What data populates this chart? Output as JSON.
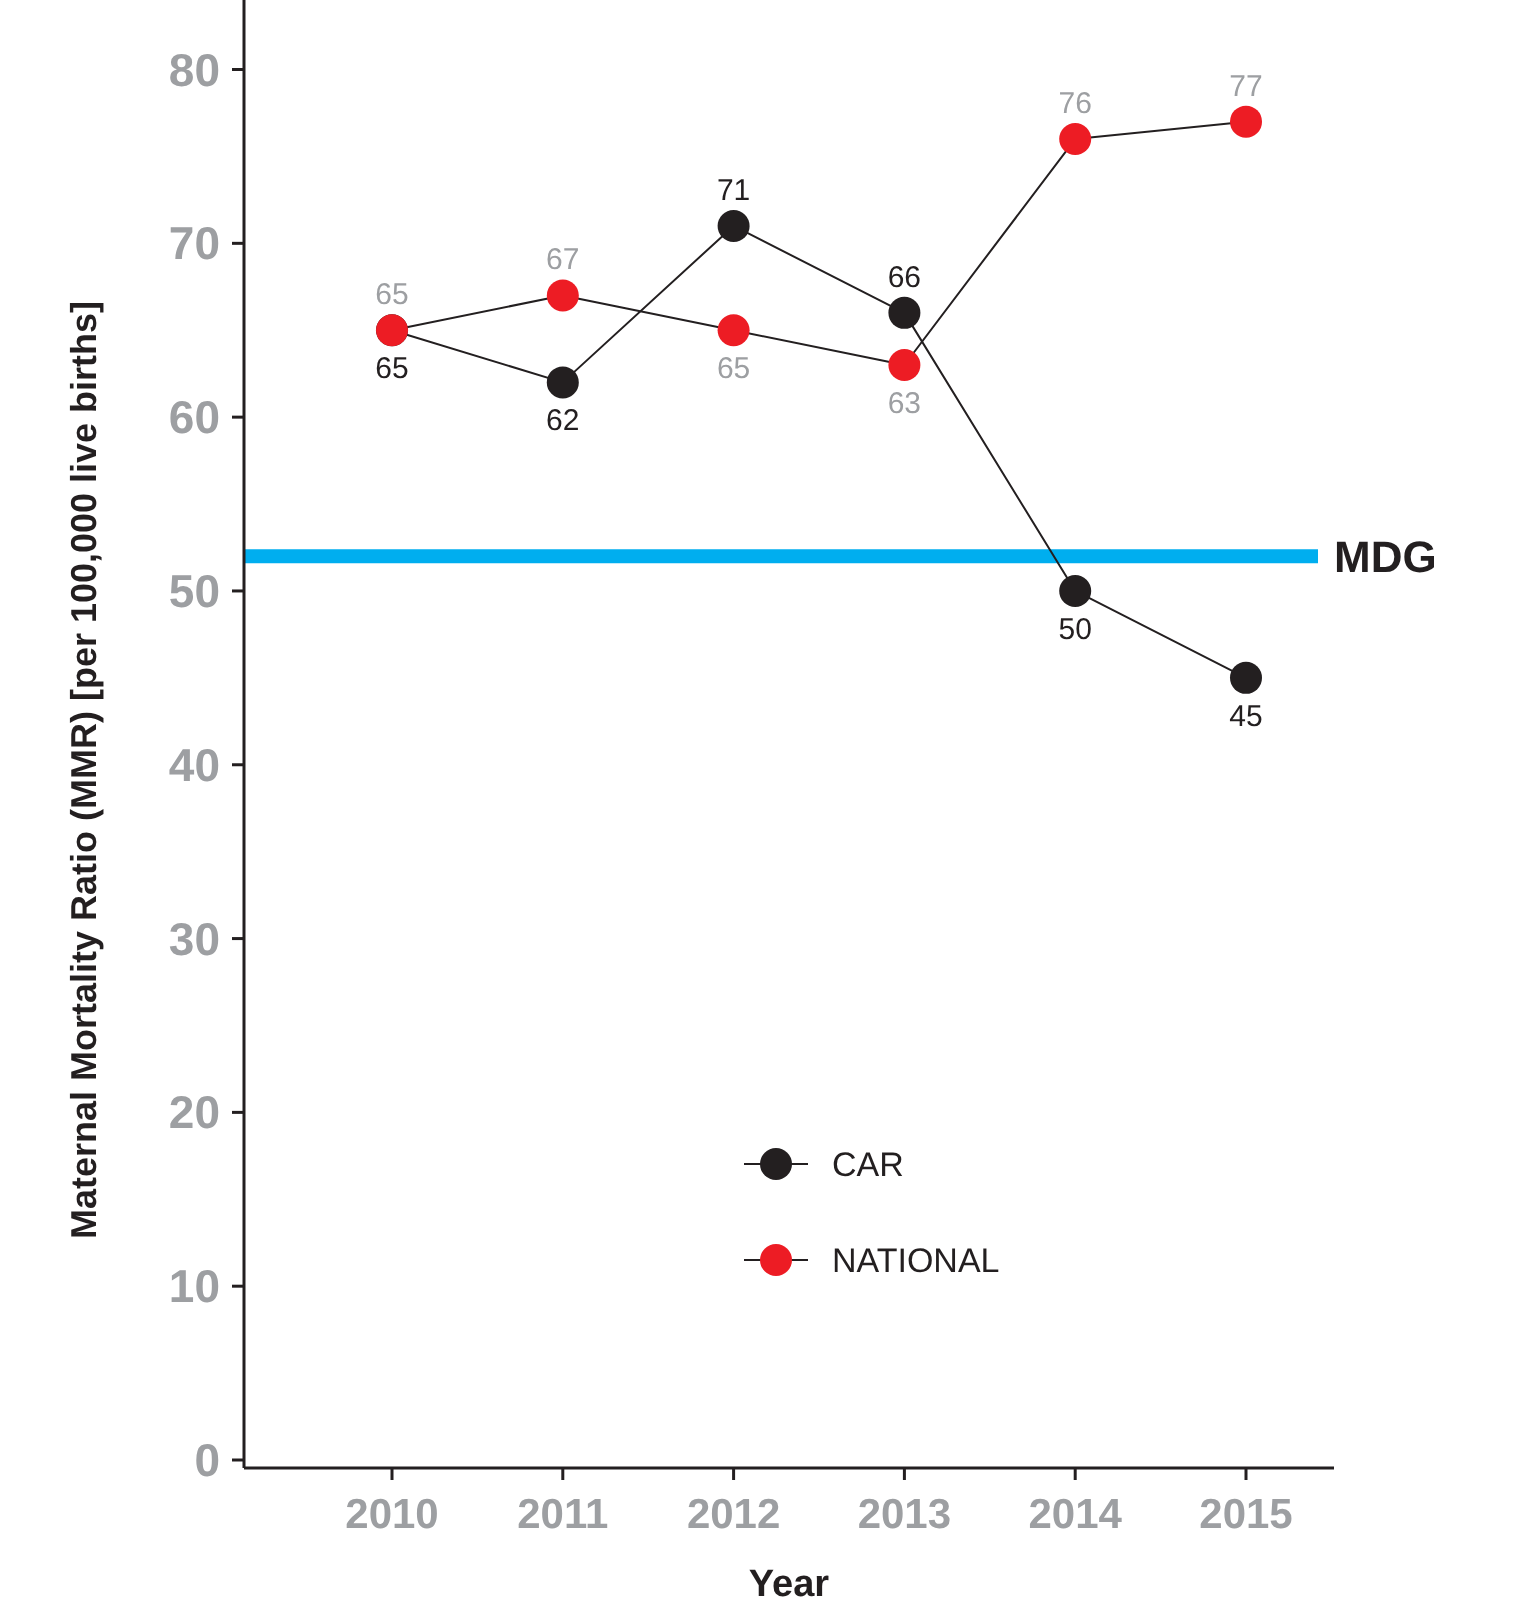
{
  "chart_data": {
    "type": "line",
    "xlabel": "Year",
    "ylabel": "Maternal Mortality Ratio (MMR) [per 100,000 live births]",
    "categories": [
      "2010",
      "2011",
      "2012",
      "2013",
      "2014",
      "2015"
    ],
    "series": [
      {
        "name": "CAR",
        "color": "#231f20",
        "values": [
          65,
          62,
          71,
          66,
          50,
          45
        ]
      },
      {
        "name": "NATIONAL",
        "color": "#ed1c24",
        "values": [
          65,
          67,
          65,
          63,
          76,
          77
        ]
      }
    ],
    "ylim": [
      0,
      84
    ],
    "yticks": [
      0,
      10,
      20,
      30,
      40,
      50,
      60,
      70,
      80
    ],
    "ref_lines": [
      {
        "axis": "y",
        "value": 52,
        "label": "MDG",
        "color": "#00aeef"
      }
    ],
    "data_labels": true,
    "marker": "circle",
    "legend": "bottom",
    "grid": false
  }
}
